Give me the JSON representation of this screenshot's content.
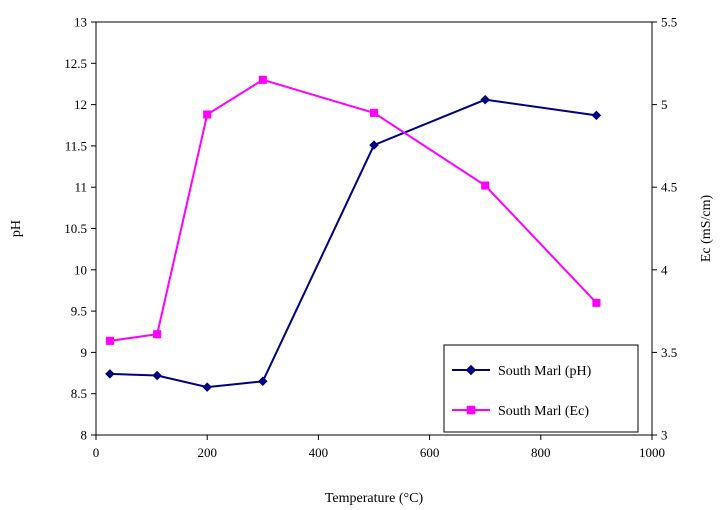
{
  "chart_data": {
    "type": "line",
    "title": "",
    "xlabel": "Temperature (°C)",
    "ylabel": "pH",
    "y2label": "Ec (mS/cm)",
    "xlim": [
      0,
      1000
    ],
    "ylim": [
      8,
      13
    ],
    "y2lim": [
      3,
      5.5
    ],
    "xticks": [
      "0",
      "200",
      "400",
      "600",
      "800",
      "1000"
    ],
    "yticks": [
      "8",
      "8.5",
      "9",
      "9.5",
      "10",
      "10.5",
      "11",
      "11.5",
      "12",
      "12.5",
      "13"
    ],
    "y2ticks": [
      "3",
      "3.5",
      "4",
      "4.5",
      "5",
      "5.5"
    ],
    "grid": false,
    "legend_position": "bottom-right",
    "series": [
      {
        "name": "South Marl (pH)",
        "axis": "left",
        "color": "#000080",
        "marker": "diamond",
        "x": [
          25,
          110,
          200,
          300,
          500,
          700,
          900
        ],
        "y": [
          8.74,
          8.72,
          8.58,
          8.65,
          11.51,
          12.06,
          11.87
        ]
      },
      {
        "name": "South Marl (Ec)",
        "axis": "right",
        "color": "#FF00FF",
        "marker": "square",
        "x": [
          25,
          110,
          200,
          300,
          500,
          700,
          900
        ],
        "y": [
          3.57,
          3.61,
          4.94,
          5.15,
          4.95,
          4.51,
          3.8
        ]
      }
    ]
  }
}
